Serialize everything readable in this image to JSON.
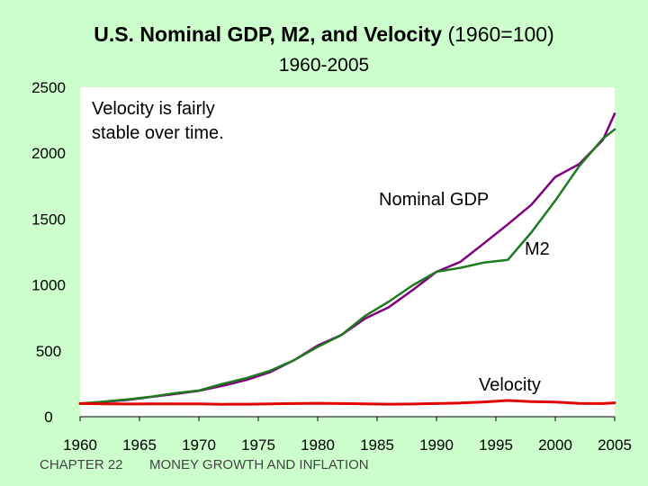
{
  "header": {
    "title_main": "U.S. Nominal GDP, M2, and Velocity",
    "title_note": "(1960=100)",
    "subtitle": "1960-2005"
  },
  "footer": {
    "chapter": "CHAPTER 22",
    "topic": "MONEY GROWTH AND INFLATION"
  },
  "colors": {
    "background": "#CCFFCC",
    "plot_area": "#FFFFFF",
    "gdp": "#800080",
    "m2": "#1F7A1F",
    "velocity": "#E00000"
  },
  "chart_data": {
    "type": "line",
    "title": "U.S. Nominal GDP, M2, and Velocity (1960=100)",
    "subtitle": "1960-2005",
    "xlabel": "",
    "ylabel": "",
    "xlim": [
      1960,
      2005
    ],
    "ylim": [
      0,
      2500
    ],
    "x_ticks": [
      1960,
      1965,
      1970,
      1975,
      1980,
      1985,
      1990,
      1995,
      2000,
      2005
    ],
    "y_ticks": [
      0,
      500,
      1000,
      1500,
      2000,
      2500
    ],
    "grid": false,
    "legend": "none",
    "x": [
      1960,
      1962,
      1964,
      1966,
      1968,
      1970,
      1972,
      1974,
      1976,
      1978,
      1980,
      1982,
      1984,
      1986,
      1988,
      1990,
      1992,
      1994,
      1996,
      1998,
      2000,
      2002,
      2004,
      2005
    ],
    "series": [
      {
        "key": "gdp",
        "label": "Nominal GDP",
        "values": [
          100,
          113,
          127,
          150,
          173,
          196,
          234,
          279,
          338,
          428,
          540,
          620,
          745,
          832,
          962,
          1100,
          1175,
          1316,
          1460,
          1610,
          1820,
          1917,
          2100,
          2300
        ]
      },
      {
        "key": "m2",
        "label": "M2",
        "values": [
          100,
          115,
          132,
          152,
          178,
          199,
          249,
          293,
          349,
          428,
          530,
          620,
          766,
          874,
          997,
          1100,
          1130,
          1170,
          1190,
          1400,
          1640,
          1900,
          2110,
          2180
        ]
      },
      {
        "key": "velocity",
        "label": "Velocity",
        "values": [
          100,
          98,
          96,
          98,
          97,
          98,
          94,
          95,
          97,
          100,
          102,
          100,
          97,
          95,
          96,
          100,
          104,
          112,
          123,
          115,
          111,
          101,
          100,
          105
        ]
      }
    ],
    "annotations": [
      {
        "text_lines": [
          "Velocity is fairly",
          "stable over time."
        ],
        "anchor": "top-left"
      },
      {
        "text": "Nominal GDP",
        "target": "gdp"
      },
      {
        "text": "M2",
        "target": "m2"
      },
      {
        "text": "Velocity",
        "target": "velocity"
      }
    ]
  }
}
